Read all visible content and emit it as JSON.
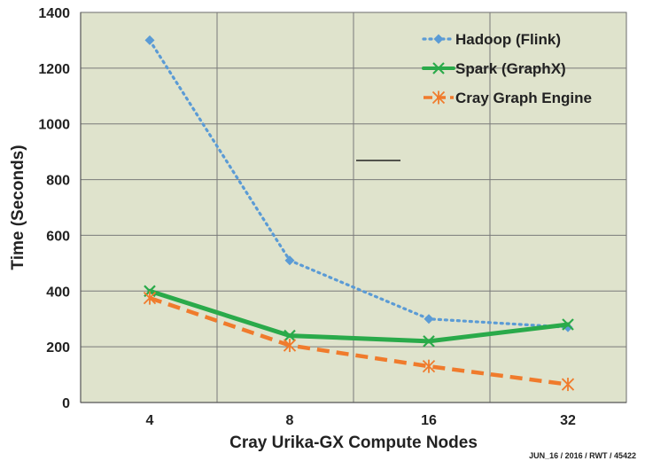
{
  "chart_data": {
    "type": "line",
    "title": "",
    "xlabel": "Cray Urika-GX Compute Nodes",
    "ylabel": "Time (Seconds)",
    "categories": [
      "4",
      "8",
      "16",
      "32"
    ],
    "ylim": [
      0,
      1400
    ],
    "yticks": [
      0,
      200,
      400,
      600,
      800,
      1000,
      1200,
      1400
    ],
    "grid": true,
    "legend_position": "top-right",
    "plot_background": "#dfe3cc",
    "series": [
      {
        "name": "Hadoop (Flink)",
        "values": [
          1300,
          510,
          300,
          270
        ],
        "color": "#5b9bd5",
        "style": "dotted",
        "marker": "diamond"
      },
      {
        "name": "Spark (GraphX)",
        "values": [
          400,
          240,
          220,
          280
        ],
        "color": "#2aaa4a",
        "style": "solid",
        "marker": "x"
      },
      {
        "name": "Cray Graph Engine",
        "values": [
          375,
          205,
          130,
          65
        ],
        "color": "#f07b2c",
        "style": "dashed",
        "marker": "asterisk"
      }
    ],
    "footnote": "JUN_16 / 2016 / RWT / 45422"
  }
}
